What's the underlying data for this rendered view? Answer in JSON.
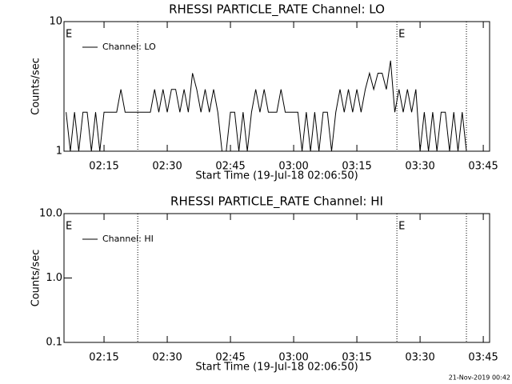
{
  "chart_data": [
    {
      "type": "line",
      "title": "RHESSI PARTICLE_RATE Channel: LO",
      "xlabel": "Start Time (19-Jul-18 02:06:50)",
      "ylabel": "Counts/sec",
      "log_y": true,
      "ylim": [
        1,
        10
      ],
      "yticks": [
        10,
        1
      ],
      "xlim": [
        125.5,
        226.5
      ],
      "xticks": [
        {
          "value": 135,
          "label": "02:15"
        },
        {
          "value": 150,
          "label": "02:30"
        },
        {
          "value": 165,
          "label": "02:45"
        },
        {
          "value": 180,
          "label": "03:00"
        },
        {
          "value": 195,
          "label": "03:15"
        },
        {
          "value": 210,
          "label": "03:30"
        },
        {
          "value": 225,
          "label": "03:45"
        }
      ],
      "vlines": [
        143,
        204.5,
        221
      ],
      "annotations": [
        {
          "text": "E",
          "x": 125.5
        },
        {
          "text": "E",
          "x": 204.5
        }
      ],
      "legend": "top-left",
      "x": [
        126,
        127,
        128,
        129,
        130,
        131,
        132,
        133,
        134,
        135,
        136,
        137,
        138,
        139,
        140,
        141,
        142,
        143,
        144,
        145,
        146,
        147,
        148,
        149,
        150,
        151,
        152,
        153,
        154,
        155,
        156,
        157,
        158,
        159,
        160,
        161,
        162,
        163,
        164,
        165,
        166,
        167,
        168,
        169,
        170,
        171,
        172,
        173,
        174,
        175,
        176,
        177,
        178,
        179,
        180,
        181,
        182,
        183,
        184,
        185,
        186,
        187,
        188,
        189,
        190,
        191,
        192,
        193,
        194,
        195,
        196,
        197,
        198,
        199,
        200,
        201,
        202,
        203,
        204,
        205,
        206,
        207,
        208,
        209,
        210,
        211,
        212,
        213,
        214,
        215,
        216,
        217,
        218,
        219,
        220,
        221
      ],
      "series": [
        {
          "name": "Channel: LO",
          "color": "#000000",
          "values": [
            2,
            1,
            2,
            1,
            2,
            2,
            1,
            2,
            1,
            2,
            2,
            2,
            2,
            3,
            2,
            2,
            2,
            2,
            2,
            2,
            2,
            3,
            2,
            3,
            2,
            3,
            3,
            2,
            3,
            2,
            4,
            3,
            2,
            3,
            2,
            3,
            2,
            1,
            1,
            2,
            2,
            1,
            2,
            1,
            2,
            3,
            2,
            3,
            2,
            2,
            2,
            3,
            2,
            2,
            2,
            2,
            1,
            2,
            1,
            2,
            1,
            2,
            2,
            1,
            2,
            3,
            2,
            3,
            2,
            3,
            2,
            3,
            4,
            3,
            4,
            4,
            3,
            5,
            2,
            3,
            2,
            3,
            2,
            3,
            1,
            2,
            1,
            2,
            1,
            2,
            2,
            1,
            2,
            1,
            2,
            1
          ]
        }
      ]
    },
    {
      "type": "line",
      "title": "RHESSI PARTICLE_RATE Channel: HI",
      "xlabel": "Start Time (19-Jul-18 02:06:50)",
      "ylabel": "Counts/sec",
      "log_y": true,
      "ylim": [
        0.1,
        10
      ],
      "yticks": [
        {
          "value": 10,
          "label": "10.0"
        },
        {
          "value": 1,
          "label": "1.0"
        },
        {
          "value": 0.1,
          "label": "0.1"
        }
      ],
      "xlim": [
        125.5,
        226.5
      ],
      "xticks": [
        {
          "value": 135,
          "label": "02:15"
        },
        {
          "value": 150,
          "label": "02:30"
        },
        {
          "value": 165,
          "label": "02:45"
        },
        {
          "value": 180,
          "label": "03:00"
        },
        {
          "value": 195,
          "label": "03:15"
        },
        {
          "value": 210,
          "label": "03:30"
        },
        {
          "value": 225,
          "label": "03:45"
        }
      ],
      "vlines": [
        143,
        204.5,
        221
      ],
      "annotations": [
        {
          "text": "E",
          "x": 125.5
        },
        {
          "text": "E",
          "x": 204.5
        }
      ],
      "legend": "top-left",
      "x": [],
      "series": [
        {
          "name": "Channel: HI",
          "color": "#000000",
          "values": []
        }
      ]
    }
  ],
  "footer": "21-Nov-2019 00:42"
}
